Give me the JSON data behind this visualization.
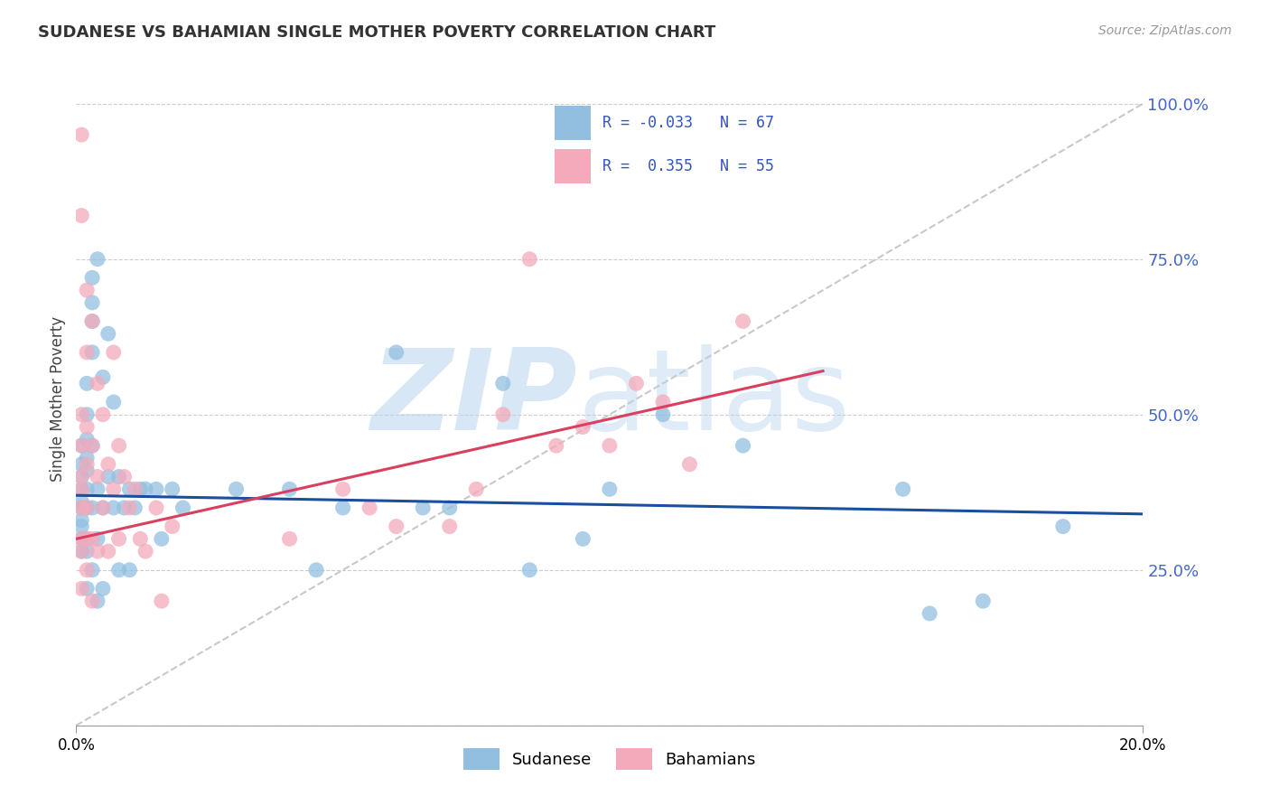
{
  "title": "SUDANESE VS BAHAMIAN SINGLE MOTHER POVERTY CORRELATION CHART",
  "source": "Source: ZipAtlas.com",
  "ylabel": "Single Mother Poverty",
  "xmin": 0.0,
  "xmax": 0.2,
  "ymin": 0.0,
  "ymax": 1.05,
  "sudanese_R": -0.033,
  "sudanese_N": 67,
  "bahamian_R": 0.355,
  "bahamian_N": 55,
  "sudanese_color": "#92BFE0",
  "bahamian_color": "#F4AABB",
  "sudanese_line_color": "#1A4E9F",
  "bahamian_line_color": "#D94060",
  "ref_line_color": "#BBBBBB",
  "watermark_zip": "ZIP",
  "watermark_atlas": "atlas",
  "watermark_color_zip": "#B8D4EE",
  "watermark_color_atlas": "#B8D4EE",
  "legend_color": "#3355BB",
  "grid_color": "#CCCCCC",
  "background_color": "#FFFFFF",
  "ytick_color": "#4466CC",
  "xtick_positions": [
    0.0,
    0.2
  ],
  "xtick_labels": [
    "0.0%",
    "20.0%"
  ],
  "ytick_positions": [
    0.0,
    0.25,
    0.5,
    0.75,
    1.0
  ],
  "ytick_labels": [
    "",
    "25.0%",
    "50.0%",
    "75.0%",
    "100.0%"
  ],
  "sud_x": [
    0.001,
    0.001,
    0.001,
    0.001,
    0.001,
    0.001,
    0.001,
    0.001,
    0.001,
    0.001,
    0.002,
    0.002,
    0.002,
    0.002,
    0.002,
    0.002,
    0.002,
    0.002,
    0.002,
    0.002,
    0.003,
    0.003,
    0.003,
    0.003,
    0.003,
    0.003,
    0.003,
    0.004,
    0.004,
    0.004,
    0.004,
    0.005,
    0.005,
    0.005,
    0.006,
    0.006,
    0.007,
    0.007,
    0.008,
    0.008,
    0.009,
    0.01,
    0.01,
    0.011,
    0.012,
    0.013,
    0.015,
    0.016,
    0.018,
    0.02,
    0.03,
    0.04,
    0.045,
    0.05,
    0.06,
    0.065,
    0.07,
    0.08,
    0.085,
    0.095,
    0.1,
    0.11,
    0.125,
    0.155,
    0.16,
    0.17,
    0.185
  ],
  "sud_y": [
    0.38,
    0.35,
    0.4,
    0.42,
    0.3,
    0.33,
    0.45,
    0.36,
    0.28,
    0.32,
    0.38,
    0.41,
    0.35,
    0.5,
    0.43,
    0.28,
    0.55,
    0.22,
    0.46,
    0.3,
    0.35,
    0.6,
    0.65,
    0.45,
    0.25,
    0.68,
    0.72,
    0.38,
    0.75,
    0.3,
    0.2,
    0.35,
    0.56,
    0.22,
    0.4,
    0.63,
    0.35,
    0.52,
    0.4,
    0.25,
    0.35,
    0.38,
    0.25,
    0.35,
    0.38,
    0.38,
    0.38,
    0.3,
    0.38,
    0.35,
    0.38,
    0.38,
    0.25,
    0.35,
    0.6,
    0.35,
    0.35,
    0.55,
    0.25,
    0.3,
    0.38,
    0.5,
    0.45,
    0.38,
    0.18,
    0.2,
    0.32
  ],
  "bah_x": [
    0.001,
    0.001,
    0.001,
    0.001,
    0.001,
    0.001,
    0.001,
    0.001,
    0.001,
    0.001,
    0.002,
    0.002,
    0.002,
    0.002,
    0.002,
    0.002,
    0.002,
    0.003,
    0.003,
    0.003,
    0.003,
    0.004,
    0.004,
    0.004,
    0.005,
    0.005,
    0.006,
    0.006,
    0.007,
    0.007,
    0.008,
    0.008,
    0.009,
    0.01,
    0.011,
    0.012,
    0.013,
    0.015,
    0.016,
    0.018,
    0.04,
    0.05,
    0.055,
    0.06,
    0.07,
    0.075,
    0.08,
    0.085,
    0.09,
    0.095,
    0.1,
    0.105,
    0.11,
    0.115,
    0.125
  ],
  "bah_y": [
    0.95,
    0.82,
    0.38,
    0.4,
    0.35,
    0.45,
    0.5,
    0.28,
    0.3,
    0.22,
    0.7,
    0.6,
    0.42,
    0.35,
    0.48,
    0.3,
    0.25,
    0.65,
    0.45,
    0.3,
    0.2,
    0.55,
    0.4,
    0.28,
    0.5,
    0.35,
    0.42,
    0.28,
    0.6,
    0.38,
    0.45,
    0.3,
    0.4,
    0.35,
    0.38,
    0.3,
    0.28,
    0.35,
    0.2,
    0.32,
    0.3,
    0.38,
    0.35,
    0.32,
    0.32,
    0.38,
    0.5,
    0.75,
    0.45,
    0.48,
    0.45,
    0.55,
    0.52,
    0.42,
    0.65
  ]
}
